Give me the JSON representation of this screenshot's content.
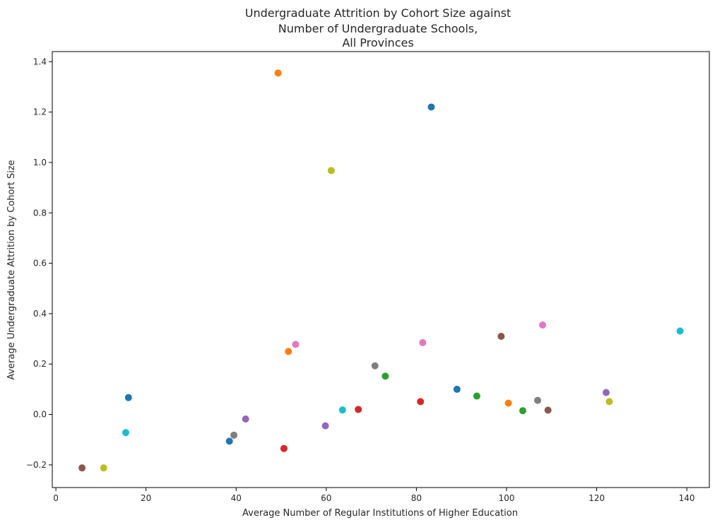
{
  "chart_data": {
    "type": "scatter",
    "title": [
      "Undergraduate Attrition by Cohort Size against",
      "Number of Undergraduate Schools,",
      "All Provinces"
    ],
    "xlabel": "Average Number of Regular Institutions of Higher Education",
    "ylabel": "Average Undergraduate Attrition by Cohort Size",
    "xlim": [
      -0.8,
      145
    ],
    "ylim": [
      -0.29,
      1.44
    ],
    "xticks": [
      0,
      20,
      40,
      60,
      80,
      100,
      120,
      140
    ],
    "yticks": [
      -0.2,
      0.0,
      0.2,
      0.4,
      0.6,
      0.8,
      1.0,
      1.2,
      1.4
    ],
    "xtick_labels": [
      "0",
      "20",
      "40",
      "60",
      "80",
      "100",
      "120",
      "140"
    ],
    "ytick_labels": [
      "−0.2",
      "0.0",
      "0.2",
      "0.4",
      "0.6",
      "0.8",
      "1.0",
      "1.2",
      "1.4"
    ],
    "grid": false,
    "legend": "none",
    "points": [
      {
        "x": 83.3,
        "y": 1.22,
        "color": "#1f77b4"
      },
      {
        "x": 49.3,
        "y": 1.355,
        "color": "#ff7f0e"
      },
      {
        "x": 73.1,
        "y": 0.152,
        "color": "#2ca02c"
      },
      {
        "x": 67.1,
        "y": 0.02,
        "color": "#d62728"
      },
      {
        "x": 42.1,
        "y": -0.018,
        "color": "#9467bd"
      },
      {
        "x": 5.8,
        "y": -0.212,
        "color": "#8c564b"
      },
      {
        "x": 53.2,
        "y": 0.278,
        "color": "#e377c2"
      },
      {
        "x": 39.5,
        "y": -0.082,
        "color": "#7f7f7f"
      },
      {
        "x": 61.1,
        "y": 0.968,
        "color": "#bcbd22"
      },
      {
        "x": 15.5,
        "y": -0.072,
        "color": "#17becf"
      },
      {
        "x": 16.1,
        "y": 0.067,
        "color": "#1f77b4"
      },
      {
        "x": 51.6,
        "y": 0.25,
        "color": "#ff7f0e"
      },
      {
        "x": 93.4,
        "y": 0.073,
        "color": "#2ca02c"
      },
      {
        "x": 50.6,
        "y": -0.135,
        "color": "#d62728"
      },
      {
        "x": 59.8,
        "y": -0.045,
        "color": "#9467bd"
      },
      {
        "x": 98.8,
        "y": 0.31,
        "color": "#8c564b"
      },
      {
        "x": 81.4,
        "y": 0.285,
        "color": "#e377c2"
      },
      {
        "x": 70.8,
        "y": 0.193,
        "color": "#7f7f7f"
      },
      {
        "x": 10.6,
        "y": -0.212,
        "color": "#bcbd22"
      },
      {
        "x": 63.6,
        "y": 0.018,
        "color": "#17becf"
      },
      {
        "x": 38.5,
        "y": -0.106,
        "color": "#1f77b4"
      },
      {
        "x": 100.4,
        "y": 0.045,
        "color": "#ff7f0e"
      },
      {
        "x": 103.6,
        "y": 0.015,
        "color": "#2ca02c"
      },
      {
        "x": 80.9,
        "y": 0.051,
        "color": "#d62728"
      },
      {
        "x": 122.1,
        "y": 0.087,
        "color": "#9467bd"
      },
      {
        "x": 109.2,
        "y": 0.017,
        "color": "#8c564b"
      },
      {
        "x": 108.0,
        "y": 0.355,
        "color": "#e377c2"
      },
      {
        "x": 106.9,
        "y": 0.056,
        "color": "#7f7f7f"
      },
      {
        "x": 122.8,
        "y": 0.051,
        "color": "#bcbd22"
      },
      {
        "x": 138.5,
        "y": 0.331,
        "color": "#17becf"
      },
      {
        "x": 89.0,
        "y": 0.1,
        "color": "#1f77b4"
      }
    ]
  }
}
